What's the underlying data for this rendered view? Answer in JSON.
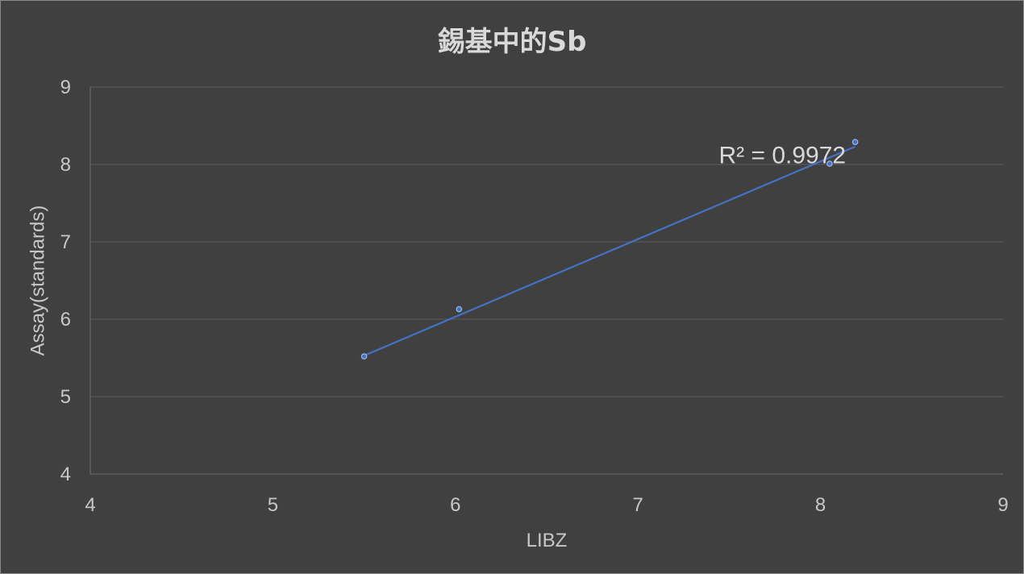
{
  "chart_data": {
    "type": "scatter",
    "title": "錫基中的Sb",
    "xlabel": "LIBZ",
    "ylabel": "Assay(standards)",
    "xlim": [
      4,
      9
    ],
    "ylim": [
      4,
      9
    ],
    "x_ticks": [
      "4",
      "5",
      "6",
      "7",
      "8",
      "9"
    ],
    "y_ticks": [
      "4",
      "5",
      "6",
      "7",
      "8",
      "9"
    ],
    "grid": "horizontal",
    "legend": "none",
    "series": [
      {
        "points": [
          {
            "x": 5.5,
            "y": 5.52
          },
          {
            "x": 6.02,
            "y": 6.13
          },
          {
            "x": 8.05,
            "y": 8.01
          },
          {
            "x": 8.19,
            "y": 8.29
          }
        ],
        "color": "#4472c4"
      }
    ],
    "trendline": {
      "type": "linear",
      "from": {
        "x": 5.5,
        "y": 5.53
      },
      "to": {
        "x": 8.19,
        "y": 8.23
      },
      "color": "#4472c4"
    },
    "annotations": [
      {
        "text": "R² = 0.9972",
        "x": 7.8,
        "y": 8.14
      }
    ]
  }
}
